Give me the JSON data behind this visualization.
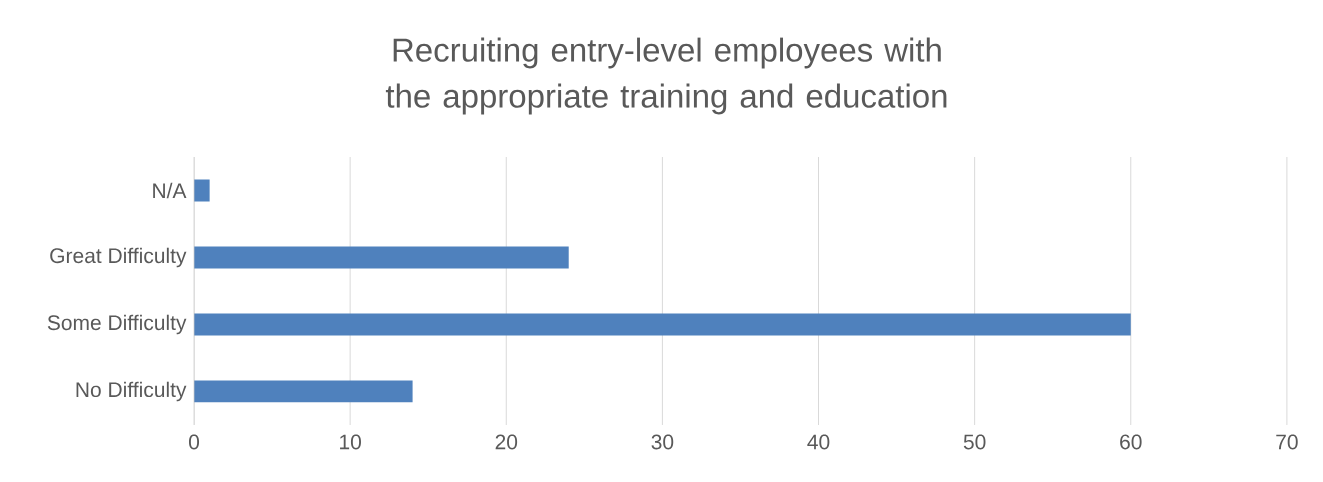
{
  "chart_data": {
    "type": "bar",
    "orientation": "horizontal",
    "title": "Recruiting entry-level employees with the appropriate training and education",
    "categories": [
      "N/A",
      "Great Difficulty",
      "Some Difficulty",
      "No Difficulty"
    ],
    "values": [
      1,
      24,
      60,
      14
    ],
    "color": "#4f81bd",
    "xlim": [
      0,
      70
    ],
    "xticks": [
      0,
      10,
      20,
      30,
      40,
      50,
      60,
      70
    ],
    "grid": "x"
  }
}
